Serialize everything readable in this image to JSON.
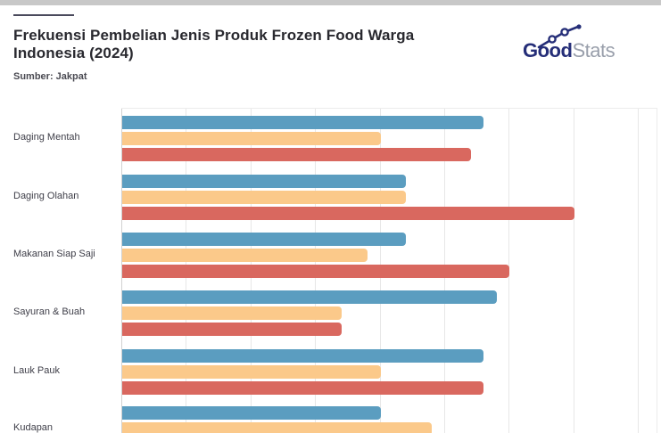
{
  "header": {
    "title_line1": "Frekuensi Pembelian Jenis Produk Frozen Food Warga",
    "title_line2": "Indonesia (2024)",
    "source": "Sumber: Jakpat"
  },
  "logo": {
    "part_bold": "Good",
    "part_light": "Stats",
    "bold_color": "#252e78",
    "light_color": "#999fab",
    "doodle_icon": "trend-line-icon"
  },
  "colors": {
    "top_strip": "#c8c8c8",
    "accent_dash": "#4a4a5c",
    "title_text": "#29292f",
    "gridline": "#e7e7e7",
    "axis_line": "#d2d2d2",
    "category_label_text": "#3e3e48"
  },
  "chart_data": {
    "type": "bar",
    "orientation": "horizontal",
    "title": "Frekuensi Pembelian Jenis Produk Frozen Food Warga Indonesia (2024)",
    "source": "Sumber: Jakpat",
    "categories": [
      "Daging Mentah",
      "Daging Olahan",
      "Makanan Siap Saji",
      "Sayuran & Buah",
      "Lauk Pauk",
      "Kudapan"
    ],
    "series": [
      {
        "name": "series-blue",
        "color": "#5b9dc0",
        "values": [
          28,
          22,
          22,
          29,
          28,
          20
        ]
      },
      {
        "name": "series-orange",
        "color": "#fbc98a",
        "values": [
          20,
          22,
          19,
          17,
          20,
          24
        ]
      },
      {
        "name": "series-red",
        "color": "#d9685f",
        "values": [
          27,
          35,
          30,
          17,
          28,
          null
        ]
      }
    ],
    "value_axis": {
      "min": 0,
      "max_visible": 40,
      "gridline_step": 5,
      "tick_labels_visible": false,
      "unit_note": "values estimated from unlabeled gridlines at 5 per interval"
    },
    "grid": true,
    "legend_position": "not visible (chart cropped at bottom edge)",
    "crop_note": "image bottom cuts through Kudapan group; Kudapan red bar and x-axis labels are not visible"
  }
}
